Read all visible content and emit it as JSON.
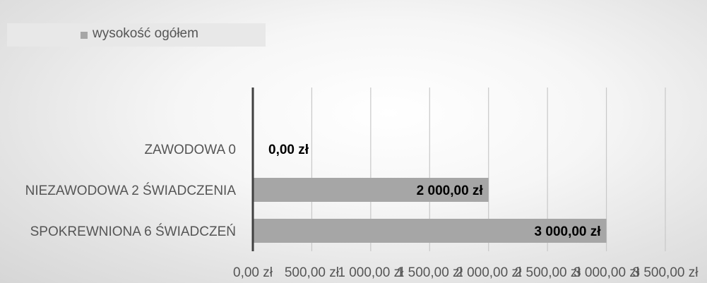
{
  "chart_data": {
    "type": "bar",
    "orientation": "horizontal",
    "title": "",
    "xlabel": "",
    "ylabel": "",
    "categories": [
      "ZAWODOWA 0",
      "NIEZAWODOWA 2 ŚWIADCZENIA",
      "SPOKREWNIONA 6 ŚWIADCZEŃ"
    ],
    "series": [
      {
        "name": "wysokość ogółem",
        "values": [
          0,
          2000,
          3000
        ],
        "data_labels": [
          "0,00 zł",
          "2 000,00 zł",
          "3 000,00 zł"
        ]
      }
    ],
    "x_ticks": [
      0,
      500,
      1000,
      1500,
      2000,
      2500,
      3000,
      3500
    ],
    "x_tick_labels": [
      "0,00 zł",
      "500,00 zł",
      "1 000,00 zł",
      "1 500,00 zł",
      "2 000,00 zł",
      "2 500,00 zł",
      "3 000,00 zł",
      "3 500,00 zł"
    ],
    "xlim": [
      0,
      3500
    ],
    "grid": true,
    "legend_position": "top-left",
    "colors": {
      "bar": "#a6a6a6",
      "gridline": "#c8c8c8",
      "axis": "#404040",
      "legend_swatch": "#a6a6a6"
    }
  }
}
